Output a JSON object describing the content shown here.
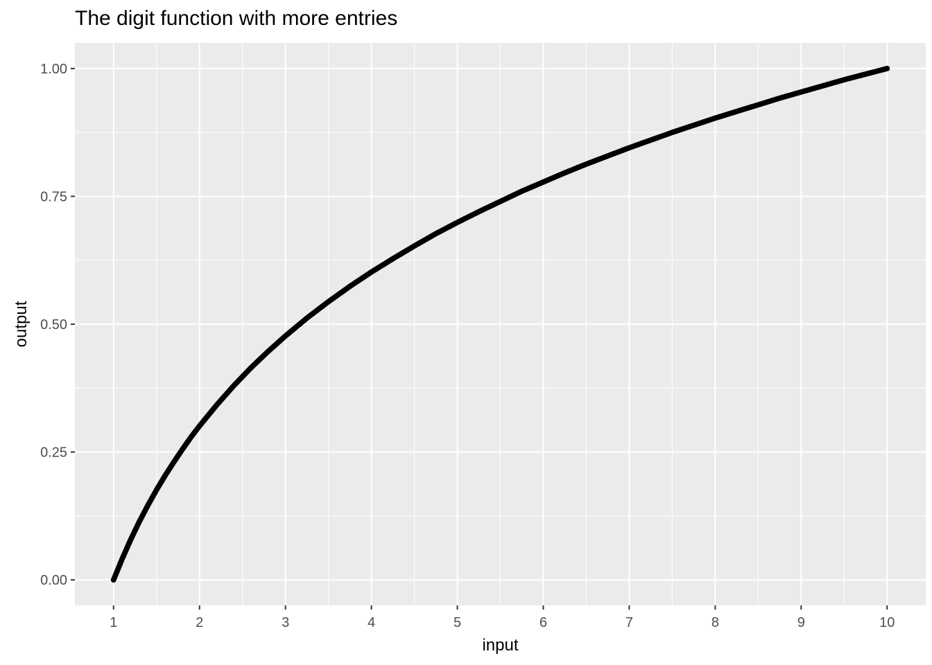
{
  "chart_data": {
    "type": "scatter",
    "title": "The digit function with more entries",
    "xlabel": "input",
    "ylabel": "output",
    "xlim": [
      0.55,
      10.45
    ],
    "ylim": [
      -0.05,
      1.05
    ],
    "x_ticks": [
      1,
      2,
      3,
      4,
      5,
      6,
      7,
      8,
      9,
      10
    ],
    "x_tick_labels": [
      "1",
      "2",
      "3",
      "4",
      "5",
      "6",
      "7",
      "8",
      "9",
      "10"
    ],
    "y_ticks": [
      0,
      0.25,
      0.5,
      0.75,
      1
    ],
    "y_tick_labels": [
      "0.00",
      "0.25",
      "0.50",
      "0.75",
      "1.00"
    ],
    "grid": true,
    "theme": "ggplot2 grey panel",
    "colors": {
      "panel": "#ebebeb",
      "grid": "#ffffff",
      "points": "#000000"
    },
    "series": [
      {
        "x": [
          1.0,
          1.1,
          1.2,
          1.3,
          1.4,
          1.5,
          1.6,
          1.7,
          1.8,
          1.9,
          2.0,
          2.2,
          2.4,
          2.6,
          2.8,
          3.0,
          3.25,
          3.5,
          3.75,
          4.0,
          4.25,
          4.5,
          4.75,
          5.0,
          5.25,
          5.5,
          5.75,
          6.0,
          6.25,
          6.5,
          6.75,
          7.0,
          7.25,
          7.5,
          7.75,
          8.0,
          8.25,
          8.5,
          8.75,
          9.0,
          9.25,
          9.5,
          9.75,
          10.0
        ],
        "y": [
          0.0,
          0.041,
          0.079,
          0.114,
          0.146,
          0.176,
          0.204,
          0.23,
          0.255,
          0.279,
          0.301,
          0.342,
          0.38,
          0.415,
          0.447,
          0.477,
          0.512,
          0.544,
          0.574,
          0.602,
          0.628,
          0.653,
          0.677,
          0.699,
          0.72,
          0.74,
          0.76,
          0.778,
          0.796,
          0.813,
          0.829,
          0.845,
          0.86,
          0.875,
          0.889,
          0.903,
          0.916,
          0.929,
          0.942,
          0.954,
          0.966,
          0.978,
          0.989,
          1.0
        ]
      }
    ]
  }
}
